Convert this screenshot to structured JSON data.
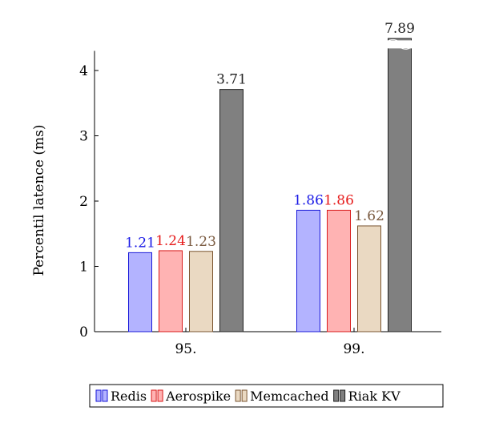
{
  "chart_data": {
    "type": "bar",
    "categories": [
      "95.",
      "99."
    ],
    "ylabel": "Percentil latence (ms)",
    "xlabel": "",
    "ylim": [
      0,
      4
    ],
    "yticks": [
      "0",
      "1",
      "2",
      "3",
      "4"
    ],
    "axis_break": true,
    "grid": false,
    "legend_position": "bottom",
    "series": [
      {
        "name": "Redis",
        "values": [
          1.21,
          1.86
        ],
        "labels": [
          "1.21",
          "1.86"
        ],
        "fill": "#b3b3ff",
        "stroke": "#1a1ad9",
        "label_color": "#1a1ae6"
      },
      {
        "name": "Aerospike",
        "values": [
          1.24,
          1.86
        ],
        "labels": [
          "1.24",
          "1.86"
        ],
        "fill": "#ffb3b3",
        "stroke": "#d91a1a",
        "label_color": "#e61a1a"
      },
      {
        "name": "Memcached",
        "values": [
          1.23,
          1.62
        ],
        "labels": [
          "1.23",
          "1.62"
        ],
        "fill": "#ead9c2",
        "stroke": "#7a5530",
        "label_color": "#7a5a40"
      },
      {
        "name": "Riak KV",
        "values": [
          3.71,
          7.89
        ],
        "labels": [
          "3.71",
          "7.89"
        ],
        "fill": "#808080",
        "stroke": "#222222",
        "label_color": "#222222"
      }
    ]
  }
}
